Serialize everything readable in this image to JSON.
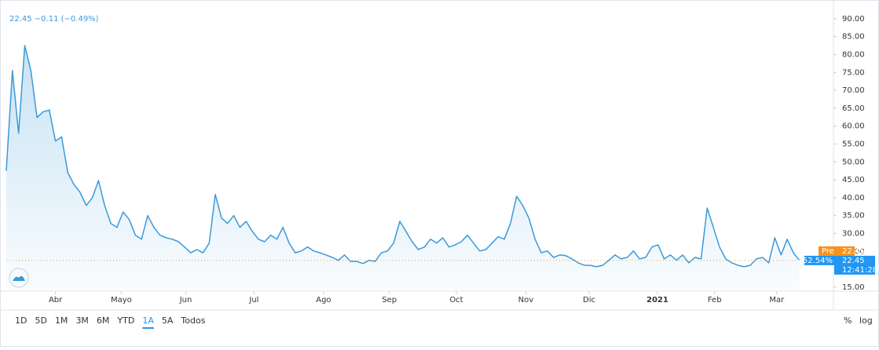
{
  "chart_data": {
    "type": "area",
    "header": "22.45 −0.11 (−0.49%)",
    "values": [
      47.5,
      75.5,
      58,
      82.5,
      75.5,
      62.4,
      64,
      64.5,
      55.8,
      57,
      47,
      43.7,
      41.5,
      37.8,
      40,
      44.8,
      37.8,
      32.8,
      31.7,
      36,
      33.9,
      29.5,
      28.4,
      35,
      31.7,
      29.5,
      28.8,
      28.4,
      27.7,
      26.2,
      24.6,
      25.5,
      24.6,
      27.3,
      40.9,
      34.3,
      32.8,
      35,
      31.7,
      33.4,
      30.6,
      28.4,
      27.7,
      29.5,
      28.4,
      31.7,
      27.3,
      24.6,
      25.1,
      26.2,
      25.1,
      24.6,
      24.0,
      23.3,
      22.5,
      24.0,
      22.2,
      22.2,
      21.6,
      22.5,
      22.2,
      24.6,
      25.1,
      27.3,
      33.4,
      30.6,
      27.7,
      25.5,
      26.2,
      28.4,
      27.3,
      28.8,
      26.2,
      26.8,
      27.7,
      29.5,
      27.3,
      25.1,
      25.5,
      27.3,
      29.1,
      28.4,
      32.8,
      40.4,
      37.8,
      34.3,
      28.4,
      24.6,
      25.1,
      23.3,
      24.0,
      23.8,
      22.9,
      21.8,
      21.1,
      21.1,
      20.7,
      21.1,
      22.5,
      24.0,
      22.9,
      23.3,
      25.1,
      22.9,
      23.3,
      26.2,
      26.8,
      22.9,
      24.0,
      22.5,
      24.0,
      21.8,
      23.3,
      22.9,
      37.1,
      31.7,
      26.2,
      22.9,
      21.8,
      21.1,
      20.7,
      21.1,
      22.9,
      23.3,
      21.8,
      28.8,
      24.0,
      28.4,
      24.6,
      22.45
    ],
    "color": "#3a9ad9",
    "ylim": [
      14.1,
      92.6
    ],
    "yticks": [
      {
        "value": 15,
        "label": "15.00"
      },
      {
        "value": 20,
        "label": "20.00"
      },
      {
        "value": 25,
        "label": "25.00"
      },
      {
        "value": 30,
        "label": "30.00"
      },
      {
        "value": 35,
        "label": "35.00"
      },
      {
        "value": 40,
        "label": "40.00"
      },
      {
        "value": 45,
        "label": "45.00"
      },
      {
        "value": 50,
        "label": "50.00"
      },
      {
        "value": 55,
        "label": "55.00"
      },
      {
        "value": 60,
        "label": "60.00"
      },
      {
        "value": 65,
        "label": "65.00"
      },
      {
        "value": 70,
        "label": "70.00"
      },
      {
        "value": 75,
        "label": "75.00"
      },
      {
        "value": 80,
        "label": "80.00"
      },
      {
        "value": 85,
        "label": "85.00"
      },
      {
        "value": 90,
        "label": "90.00"
      }
    ],
    "xlim": [
      0,
      134.4
    ],
    "xticks": [
      {
        "value": 8,
        "label": "Abr"
      },
      {
        "value": 18.7,
        "label": "Mayo"
      },
      {
        "value": 29.2,
        "label": "Jun"
      },
      {
        "value": 40.3,
        "label": "Jul"
      },
      {
        "value": 51.6,
        "label": "Ago"
      },
      {
        "value": 62.3,
        "label": "Sep"
      },
      {
        "value": 73.2,
        "label": "Oct"
      },
      {
        "value": 84.5,
        "label": "Nov"
      },
      {
        "value": 94.8,
        "label": "Dic"
      },
      {
        "value": 105.9,
        "label": "2021"
      },
      {
        "value": 115.2,
        "label": "Feb"
      },
      {
        "value": 125.3,
        "label": "Mar"
      }
    ],
    "pre_label": "Pre",
    "pre_price": 22.45,
    "last_price": 22.45,
    "change_label": "−52.54%",
    "time": "12:41:28"
  },
  "toolbar": {
    "ranges": [
      "1D",
      "5D",
      "1M",
      "3M",
      "6M",
      "YTD",
      "1A",
      "5A",
      "Todos"
    ],
    "active": 6,
    "percent": "%",
    "log": "log"
  }
}
